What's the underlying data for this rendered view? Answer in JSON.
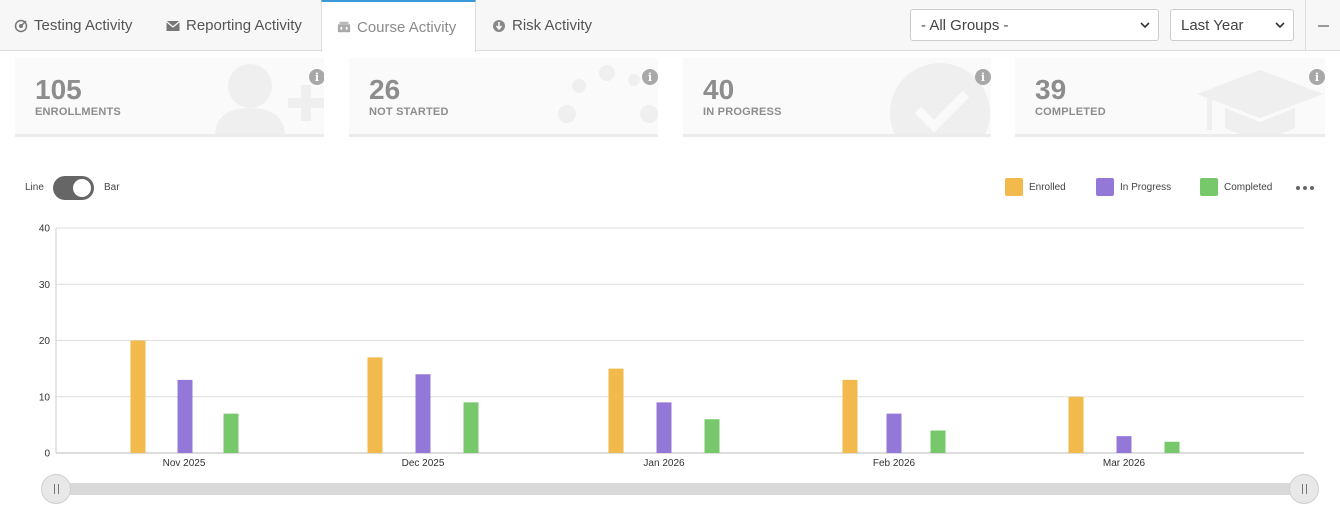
{
  "tabs": [
    {
      "label": "Testing Activity",
      "icon": "radar-icon"
    },
    {
      "label": "Reporting Activity",
      "icon": "envelope-icon"
    },
    {
      "label": "Course Activity",
      "icon": "classroom-icon",
      "active": true
    },
    {
      "label": "Risk Activity",
      "icon": "download-circle-icon"
    }
  ],
  "filters": {
    "group": "- All Groups -",
    "period": "Last Year"
  },
  "cards": [
    {
      "value": "105",
      "label": "ENROLLMENTS",
      "icon": "add-user-icon"
    },
    {
      "value": "26",
      "label": "NOT STARTED",
      "icon": "dots-icon"
    },
    {
      "value": "40",
      "label": "IN PROGRESS",
      "icon": "check-circle-icon"
    },
    {
      "value": "39",
      "label": "COMPLETED",
      "icon": "graduation-cap-icon"
    }
  ],
  "info_glyph": "i",
  "toggle": {
    "left": "Line",
    "right": "Bar",
    "state": "Bar"
  },
  "colors": {
    "enrolled": "#f2b94c",
    "in_progress": "#9478d8",
    "completed": "#77c86b",
    "accent": "#3a9ad9"
  },
  "chart_data": {
    "type": "bar",
    "categories": [
      "Nov 2025",
      "Dec 2025",
      "Jan 2026",
      "Feb 2026",
      "Mar 2026"
    ],
    "series": [
      {
        "name": "Enrolled",
        "values": [
          20,
          17,
          15,
          13,
          10
        ]
      },
      {
        "name": "In Progress",
        "values": [
          13,
          14,
          9,
          7,
          3
        ]
      },
      {
        "name": "Completed",
        "values": [
          7,
          9,
          6,
          4,
          2
        ]
      }
    ],
    "yticks": [
      "0",
      "10",
      "20",
      "30",
      "40"
    ],
    "ylim": [
      0,
      40
    ],
    "grid": true,
    "legend": "top-right"
  }
}
